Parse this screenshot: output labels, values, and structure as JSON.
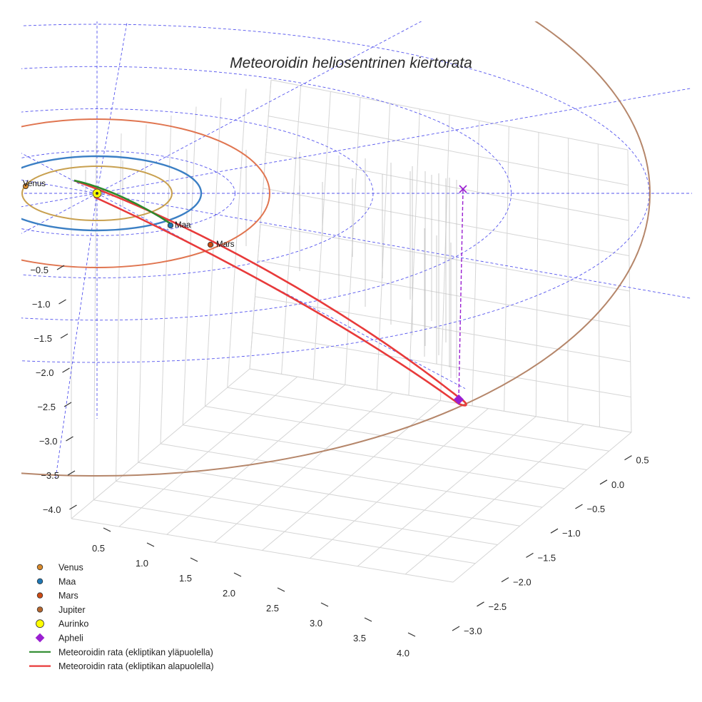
{
  "chart_data": {
    "type": "scatter",
    "projection": "3d",
    "title": "Meteoroidin heliosentrinen kiertorata",
    "x_ticks": [
      "0.5",
      "1.0",
      "1.5",
      "2.0",
      "2.5",
      "3.0",
      "3.5",
      "4.0"
    ],
    "y_ticks": [
      "0.5",
      "0.0",
      "−0.5",
      "−1.0",
      "−1.5",
      "−2.0",
      "−2.5",
      "−3.0"
    ],
    "z_ticks": [
      "−0.5",
      "−1.0",
      "−1.5",
      "−2.0",
      "−2.5",
      "−3.0",
      "−3.5",
      "−4.0"
    ],
    "xlim": [
      0.3,
      4.2
    ],
    "ylim": [
      -3.2,
      0.6
    ],
    "zlim": [
      -4.2,
      0.0
    ],
    "planet_orbits": [
      {
        "name": "Venus",
        "radius_au": 0.72,
        "color": "#c8a04f"
      },
      {
        "name": "Maa",
        "radius_au": 1.0,
        "color": "#3b7fc4"
      },
      {
        "name": "Mars",
        "radius_au": 1.52,
        "color": "#e07550"
      },
      {
        "name": "Jupiter",
        "radius_au": 5.2,
        "color": "#b5866a"
      }
    ],
    "planet_points": [
      {
        "name": "Venus",
        "label": "Venus",
        "color": "#d88a2c"
      },
      {
        "name": "Maa",
        "label": "Maa",
        "color": "#1f77b4"
      },
      {
        "name": "Mars",
        "label": "Mars",
        "color": "#cc4a14"
      }
    ],
    "ecliptic_grid_rings_au": [
      1.5,
      3.0,
      4.5,
      6.0
    ],
    "ecliptic_grid_spokes": 12,
    "meteoroid_orbit": {
      "above_ecliptic": {
        "label": "Meteoroidin rata (ekliptikan yläpuolella)",
        "color": "#2c8a2c"
      },
      "below_ecliptic": {
        "label": "Meteoroidin rata (ekliptikan alapuolella)",
        "color": "#e83a3a"
      }
    },
    "aphelion": {
      "label": "Apheli",
      "color": "#9a1fd1"
    },
    "sun": {
      "label": "Aurinko",
      "color": "#ffff00"
    },
    "legend": [
      {
        "label": "Venus",
        "marker": "circle",
        "color": "#d88a2c"
      },
      {
        "label": "Maa",
        "marker": "circle",
        "color": "#1f77b4"
      },
      {
        "label": "Mars",
        "marker": "circle",
        "color": "#cc4a14"
      },
      {
        "label": "Jupiter",
        "marker": "circle",
        "color": "#b5662e"
      },
      {
        "label": "Aurinko",
        "marker": "circle-large",
        "color": "#ffff00"
      },
      {
        "label": "Apheli",
        "marker": "diamond",
        "color": "#9a1fd1"
      },
      {
        "label": "Meteoroidin rata (ekliptikan yläpuolella)",
        "marker": "line",
        "color": "#2c8a2c"
      },
      {
        "label": "Meteoroidin rata (ekliptikan alapuolella)",
        "marker": "line",
        "color": "#e83a3a"
      }
    ],
    "legend_position": "bottom-left"
  }
}
